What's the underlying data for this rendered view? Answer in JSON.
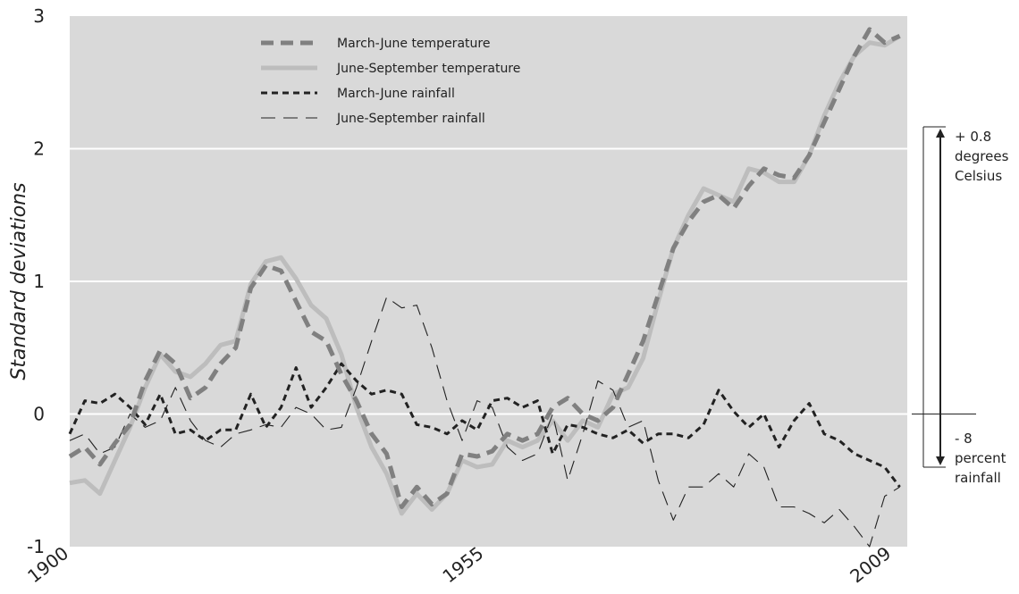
{
  "chart_data": {
    "type": "line",
    "ylabel": "Standard deviations",
    "xlabel": "",
    "xlim": [
      1900,
      2011
    ],
    "ylim": [
      -1,
      3
    ],
    "x_ticks": [
      "1900",
      "1955",
      "2009"
    ],
    "y_ticks": [
      "3",
      "2",
      "1",
      "0",
      "-1"
    ],
    "grid": true,
    "legend_position": "top-left",
    "annotations": {
      "temperature": [
        "+ 0.8",
        "degrees",
        "Celsius"
      ],
      "rainfall": [
        "- 8",
        "percent",
        "rainfall"
      ]
    },
    "colors": {
      "plot_background": "#d9d9d9",
      "gridline": "#ffffff",
      "march_june_temperature": "#808080",
      "june_september_temperature": "#bdbdbd",
      "march_june_rainfall": "#222222",
      "june_september_rainfall": "#222222"
    },
    "series": [
      {
        "name": "March-June temperature",
        "style": "thick-dashed-gray",
        "x": [
          1900,
          1902,
          1904,
          1906,
          1908,
          1910,
          1912,
          1914,
          1916,
          1918,
          1920,
          1922,
          1924,
          1926,
          1928,
          1930,
          1932,
          1934,
          1936,
          1938,
          1940,
          1942,
          1944,
          1946,
          1948,
          1950,
          1952,
          1954,
          1956,
          1958,
          1960,
          1962,
          1964,
          1966,
          1968,
          1970,
          1972,
          1974,
          1976,
          1978,
          1980,
          1982,
          1984,
          1986,
          1988,
          1990,
          1992,
          1994,
          1996,
          1998,
          2000,
          2002,
          2004,
          2006,
          2008,
          2010
        ],
        "y": [
          -0.32,
          -0.25,
          -0.38,
          -0.22,
          -0.08,
          0.25,
          0.48,
          0.38,
          0.12,
          0.2,
          0.38,
          0.5,
          0.95,
          1.12,
          1.08,
          0.85,
          0.62,
          0.55,
          0.3,
          0.1,
          -0.15,
          -0.3,
          -0.7,
          -0.55,
          -0.68,
          -0.6,
          -0.3,
          -0.32,
          -0.28,
          -0.15,
          -0.2,
          -0.15,
          0.05,
          0.12,
          0.0,
          -0.05,
          0.05,
          0.3,
          0.55,
          0.9,
          1.25,
          1.45,
          1.6,
          1.65,
          1.55,
          1.72,
          1.85,
          1.8,
          1.78,
          1.95,
          2.2,
          2.45,
          2.7,
          2.9,
          2.8,
          2.85
        ]
      },
      {
        "name": "June-September temperature",
        "style": "thick-solid-light-gray",
        "x": [
          1900,
          1902,
          1904,
          1906,
          1908,
          1910,
          1912,
          1914,
          1916,
          1918,
          1920,
          1922,
          1924,
          1926,
          1928,
          1930,
          1932,
          1934,
          1936,
          1938,
          1940,
          1942,
          1944,
          1946,
          1948,
          1950,
          1952,
          1954,
          1956,
          1958,
          1960,
          1962,
          1964,
          1966,
          1968,
          1970,
          1972,
          1974,
          1976,
          1978,
          1980,
          1982,
          1984,
          1986,
          1988,
          1990,
          1992,
          1994,
          1996,
          1998,
          2000,
          2002,
          2004,
          2006,
          2008,
          2010
        ],
        "y": [
          -0.52,
          -0.5,
          -0.6,
          -0.35,
          -0.1,
          0.2,
          0.45,
          0.32,
          0.28,
          0.38,
          0.52,
          0.55,
          0.98,
          1.15,
          1.18,
          1.02,
          0.82,
          0.72,
          0.45,
          0.05,
          -0.25,
          -0.45,
          -0.75,
          -0.6,
          -0.72,
          -0.6,
          -0.35,
          -0.4,
          -0.38,
          -0.2,
          -0.25,
          -0.2,
          -0.05,
          -0.2,
          -0.05,
          -0.1,
          0.15,
          0.2,
          0.42,
          0.85,
          1.25,
          1.5,
          1.7,
          1.65,
          1.6,
          1.85,
          1.82,
          1.75,
          1.75,
          1.95,
          2.25,
          2.5,
          2.7,
          2.8,
          2.78,
          2.85
        ]
      },
      {
        "name": "March-June rainfall",
        "style": "thick-dashed-black",
        "x": [
          1900,
          1902,
          1904,
          1906,
          1908,
          1910,
          1912,
          1914,
          1916,
          1918,
          1920,
          1922,
          1924,
          1926,
          1928,
          1930,
          1932,
          1934,
          1936,
          1938,
          1940,
          1942,
          1944,
          1946,
          1948,
          1950,
          1952,
          1954,
          1956,
          1958,
          1960,
          1962,
          1964,
          1966,
          1968,
          1970,
          1972,
          1974,
          1976,
          1978,
          1980,
          1982,
          1984,
          1986,
          1988,
          1990,
          1992,
          1994,
          1996,
          1998,
          2000,
          2002,
          2004,
          2006,
          2008,
          2010
        ],
        "y": [
          -0.15,
          0.1,
          0.08,
          0.15,
          0.05,
          -0.08,
          0.15,
          -0.15,
          -0.12,
          -0.2,
          -0.12,
          -0.12,
          0.15,
          -0.1,
          0.05,
          0.35,
          0.05,
          0.2,
          0.38,
          0.25,
          0.15,
          0.18,
          0.15,
          -0.08,
          -0.1,
          -0.15,
          -0.05,
          -0.12,
          0.1,
          0.12,
          0.05,
          0.1,
          -0.3,
          -0.08,
          -0.1,
          -0.15,
          -0.18,
          -0.12,
          -0.22,
          -0.15,
          -0.15,
          -0.18,
          -0.08,
          0.18,
          0.02,
          -0.1,
          0.0,
          -0.25,
          -0.05,
          0.08,
          -0.15,
          -0.2,
          -0.3,
          -0.35,
          -0.4,
          -0.55
        ]
      },
      {
        "name": "June-September rainfall",
        "style": "thin-dashed-black",
        "x": [
          1900,
          1902,
          1904,
          1906,
          1908,
          1910,
          1912,
          1914,
          1916,
          1918,
          1920,
          1922,
          1924,
          1926,
          1928,
          1930,
          1932,
          1934,
          1936,
          1938,
          1940,
          1942,
          1944,
          1946,
          1948,
          1950,
          1952,
          1954,
          1956,
          1958,
          1960,
          1962,
          1964,
          1966,
          1968,
          1970,
          1972,
          1974,
          1976,
          1978,
          1980,
          1982,
          1984,
          1986,
          1988,
          1990,
          1992,
          1994,
          1996,
          1998,
          2000,
          2002,
          2004,
          2006,
          2008,
          2010
        ],
        "y": [
          -0.2,
          -0.15,
          -0.3,
          -0.25,
          0.0,
          -0.1,
          -0.05,
          0.2,
          -0.05,
          -0.2,
          -0.25,
          -0.15,
          -0.12,
          -0.08,
          -0.1,
          0.05,
          0.0,
          -0.12,
          -0.1,
          0.2,
          0.55,
          0.88,
          0.8,
          0.82,
          0.5,
          0.1,
          -0.2,
          0.1,
          0.05,
          -0.25,
          -0.35,
          -0.3,
          0.0,
          -0.5,
          -0.15,
          0.25,
          0.18,
          -0.1,
          -0.05,
          -0.5,
          -0.8,
          -0.55,
          -0.55,
          -0.45,
          -0.55,
          -0.3,
          -0.4,
          -0.7,
          -0.7,
          -0.75,
          -0.82,
          -0.72,
          -0.85,
          -1.0,
          -0.62,
          -0.55
        ]
      }
    ]
  }
}
